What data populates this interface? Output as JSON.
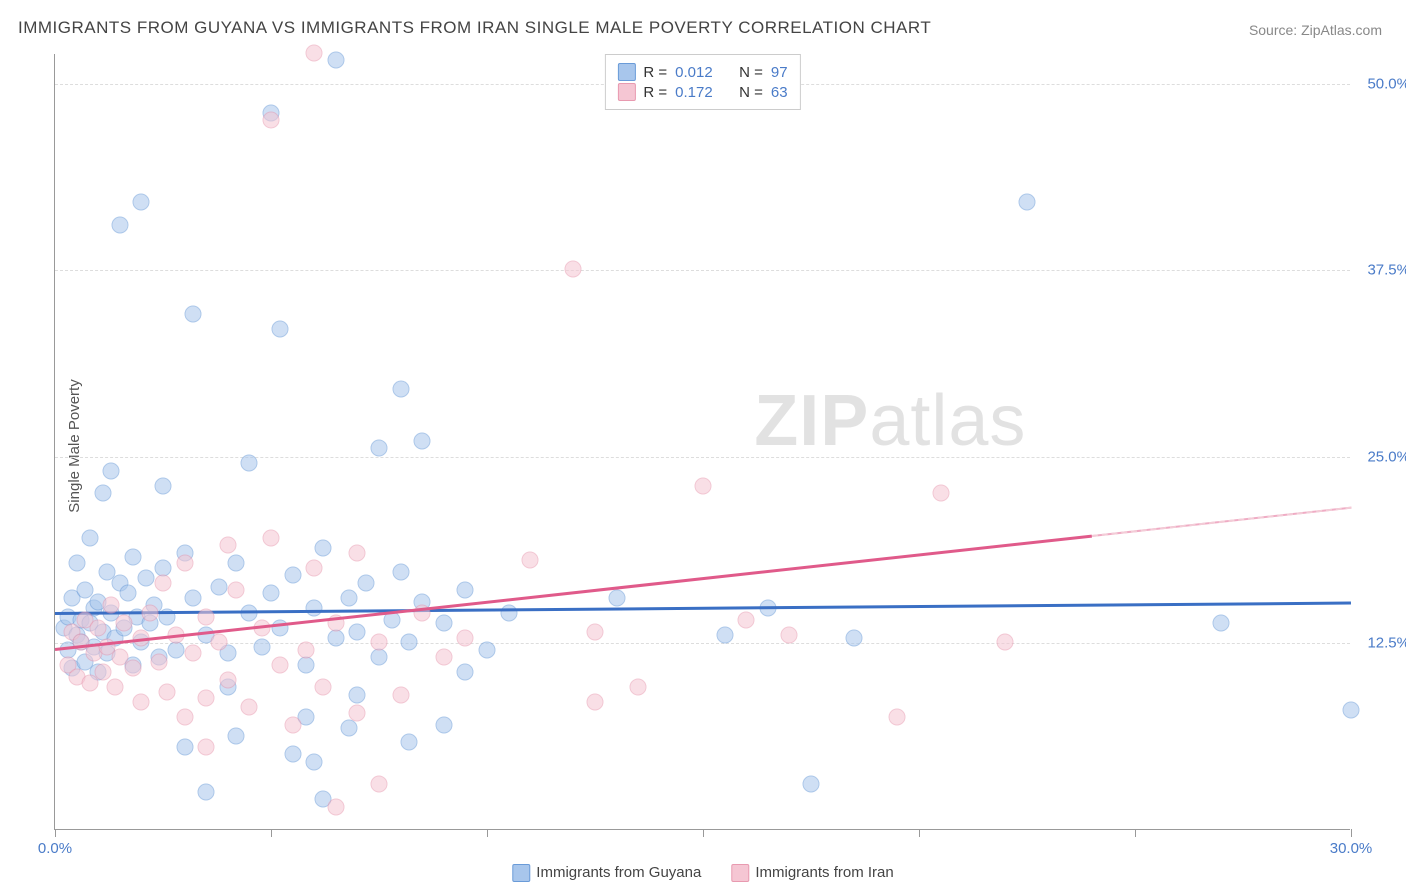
{
  "title": "IMMIGRANTS FROM GUYANA VS IMMIGRANTS FROM IRAN SINGLE MALE POVERTY CORRELATION CHART",
  "source_label": "Source: ",
  "source_name": "ZipAtlas.com",
  "ylabel": "Single Male Poverty",
  "watermark_a": "ZIP",
  "watermark_b": "atlas",
  "chart": {
    "type": "scatter",
    "xlim": [
      0,
      30
    ],
    "ylim": [
      0,
      52
    ],
    "xtick_positions": [
      0,
      5,
      10,
      15,
      20,
      25,
      30
    ],
    "xtick_labels": {
      "0": "0.0%",
      "30": "30.0%"
    },
    "ytick_positions": [
      12.5,
      25,
      37.5,
      50
    ],
    "ytick_labels": [
      "12.5%",
      "25.0%",
      "37.5%",
      "50.0%"
    ],
    "background_color": "#ffffff",
    "grid_color": "#dddddd",
    "axis_color": "#999999",
    "tick_label_color": "#4a7bc8",
    "title_fontsize": 17,
    "label_fontsize": 15,
    "point_diameter": 17,
    "point_opacity": 0.55
  },
  "series": [
    {
      "name": "Immigrants from Guyana",
      "color_fill": "#a8c6ec",
      "color_stroke": "#6a9bd8",
      "trend_color": "#3a6fc4",
      "R": "0.012",
      "N": "97",
      "trend": {
        "x0": 0,
        "y0": 14.6,
        "x1": 30,
        "y1": 15.3
      },
      "points": [
        [
          0.2,
          13.5
        ],
        [
          0.3,
          12.0
        ],
        [
          0.3,
          14.2
        ],
        [
          0.4,
          10.8
        ],
        [
          0.4,
          15.5
        ],
        [
          0.5,
          13.0
        ],
        [
          0.5,
          17.8
        ],
        [
          0.6,
          12.5
        ],
        [
          0.6,
          14.0
        ],
        [
          0.7,
          11.2
        ],
        [
          0.7,
          16.0
        ],
        [
          0.8,
          13.8
        ],
        [
          0.8,
          19.5
        ],
        [
          0.9,
          12.2
        ],
        [
          0.9,
          14.8
        ],
        [
          1.0,
          10.5
        ],
        [
          1.0,
          15.2
        ],
        [
          1.1,
          13.2
        ],
        [
          1.1,
          22.5
        ],
        [
          1.2,
          11.8
        ],
        [
          1.2,
          17.2
        ],
        [
          1.3,
          14.5
        ],
        [
          1.3,
          24.0
        ],
        [
          1.4,
          12.8
        ],
        [
          1.5,
          16.5
        ],
        [
          1.5,
          40.5
        ],
        [
          1.6,
          13.5
        ],
        [
          1.7,
          15.8
        ],
        [
          1.8,
          11.0
        ],
        [
          1.8,
          18.2
        ],
        [
          1.9,
          14.2
        ],
        [
          2.0,
          12.5
        ],
        [
          2.0,
          42.0
        ],
        [
          2.1,
          16.8
        ],
        [
          2.2,
          13.8
        ],
        [
          2.3,
          15.0
        ],
        [
          2.4,
          11.5
        ],
        [
          2.5,
          17.5
        ],
        [
          2.5,
          23.0
        ],
        [
          2.6,
          14.2
        ],
        [
          2.8,
          12.0
        ],
        [
          3.0,
          18.5
        ],
        [
          3.0,
          5.5
        ],
        [
          3.2,
          15.5
        ],
        [
          3.2,
          34.5
        ],
        [
          3.5,
          13.0
        ],
        [
          3.5,
          2.5
        ],
        [
          3.8,
          16.2
        ],
        [
          4.0,
          11.8
        ],
        [
          4.0,
          9.5
        ],
        [
          4.2,
          17.8
        ],
        [
          4.5,
          14.5
        ],
        [
          4.5,
          24.5
        ],
        [
          4.8,
          12.2
        ],
        [
          5.0,
          15.8
        ],
        [
          5.0,
          48.0
        ],
        [
          5.2,
          13.5
        ],
        [
          5.2,
          33.5
        ],
        [
          5.5,
          17.0
        ],
        [
          5.8,
          11.0
        ],
        [
          5.8,
          7.5
        ],
        [
          6.0,
          14.8
        ],
        [
          6.0,
          4.5
        ],
        [
          6.2,
          18.8
        ],
        [
          6.2,
          2.0
        ],
        [
          6.5,
          12.8
        ],
        [
          6.5,
          51.5
        ],
        [
          6.8,
          15.5
        ],
        [
          7.0,
          13.2
        ],
        [
          7.0,
          9.0
        ],
        [
          7.2,
          16.5
        ],
        [
          7.5,
          11.5
        ],
        [
          7.5,
          25.5
        ],
        [
          7.8,
          14.0
        ],
        [
          8.0,
          17.2
        ],
        [
          8.0,
          29.5
        ],
        [
          8.2,
          12.5
        ],
        [
          8.2,
          5.8
        ],
        [
          8.5,
          15.2
        ],
        [
          8.5,
          26.0
        ],
        [
          9.0,
          13.8
        ],
        [
          9.0,
          7.0
        ],
        [
          9.5,
          16.0
        ],
        [
          9.5,
          10.5
        ],
        [
          10.0,
          12.0
        ],
        [
          10.5,
          14.5
        ],
        [
          13.0,
          15.5
        ],
        [
          15.5,
          13.0
        ],
        [
          16.5,
          14.8
        ],
        [
          17.5,
          3.0
        ],
        [
          18.5,
          12.8
        ],
        [
          22.5,
          42.0
        ],
        [
          27.0,
          13.8
        ],
        [
          30.0,
          8.0
        ],
        [
          4.2,
          6.2
        ],
        [
          5.5,
          5.0
        ],
        [
          6.8,
          6.8
        ]
      ]
    },
    {
      "name": "Immigrants from Iran",
      "color_fill": "#f5c6d3",
      "color_stroke": "#e89ab0",
      "trend_color": "#e05a8a",
      "R": "0.172",
      "N": "63",
      "trend": {
        "x0": 0,
        "y0": 12.2,
        "x1": 24,
        "y1": 19.8,
        "dash_to_x": 30,
        "dash_to_y": 21.7
      },
      "points": [
        [
          0.3,
          11.0
        ],
        [
          0.4,
          13.2
        ],
        [
          0.5,
          10.2
        ],
        [
          0.6,
          12.5
        ],
        [
          0.7,
          14.0
        ],
        [
          0.8,
          9.8
        ],
        [
          0.9,
          11.8
        ],
        [
          1.0,
          13.5
        ],
        [
          1.1,
          10.5
        ],
        [
          1.2,
          12.2
        ],
        [
          1.3,
          15.0
        ],
        [
          1.4,
          9.5
        ],
        [
          1.5,
          11.5
        ],
        [
          1.6,
          13.8
        ],
        [
          1.8,
          10.8
        ],
        [
          2.0,
          12.8
        ],
        [
          2.0,
          8.5
        ],
        [
          2.2,
          14.5
        ],
        [
          2.4,
          11.2
        ],
        [
          2.5,
          16.5
        ],
        [
          2.6,
          9.2
        ],
        [
          2.8,
          13.0
        ],
        [
          3.0,
          17.8
        ],
        [
          3.0,
          7.5
        ],
        [
          3.2,
          11.8
        ],
        [
          3.5,
          14.2
        ],
        [
          3.5,
          8.8
        ],
        [
          3.8,
          12.5
        ],
        [
          4.0,
          10.0
        ],
        [
          4.0,
          19.0
        ],
        [
          4.2,
          16.0
        ],
        [
          4.5,
          8.2
        ],
        [
          4.8,
          13.5
        ],
        [
          5.0,
          19.5
        ],
        [
          5.2,
          11.0
        ],
        [
          5.5,
          7.0
        ],
        [
          5.8,
          12.0
        ],
        [
          6.0,
          17.5
        ],
        [
          6.0,
          52.0
        ],
        [
          6.2,
          9.5
        ],
        [
          6.5,
          13.8
        ],
        [
          6.5,
          1.5
        ],
        [
          7.0,
          7.8
        ],
        [
          7.0,
          18.5
        ],
        [
          7.5,
          12.5
        ],
        [
          7.5,
          3.0
        ],
        [
          8.0,
          9.0
        ],
        [
          8.5,
          14.5
        ],
        [
          9.0,
          11.5
        ],
        [
          9.5,
          12.8
        ],
        [
          11.0,
          18.0
        ],
        [
          12.0,
          37.5
        ],
        [
          12.5,
          13.2
        ],
        [
          12.5,
          8.5
        ],
        [
          13.5,
          9.5
        ],
        [
          15.0,
          23.0
        ],
        [
          16.0,
          14.0
        ],
        [
          17.0,
          13.0
        ],
        [
          19.5,
          7.5
        ],
        [
          20.5,
          22.5
        ],
        [
          22.0,
          12.5
        ],
        [
          5.0,
          47.5
        ],
        [
          3.5,
          5.5
        ]
      ]
    }
  ],
  "legend_top": {
    "R_label": "R =",
    "N_label": "N ="
  }
}
